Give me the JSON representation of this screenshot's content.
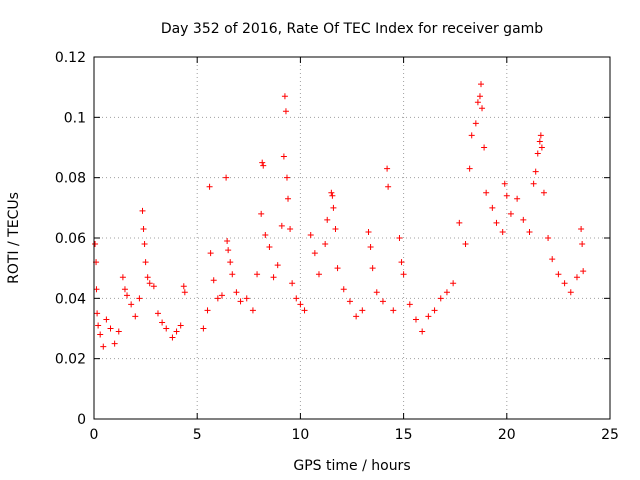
{
  "chart_data": {
    "type": "scatter",
    "title": "Day 352 of 2016, Rate Of TEC Index for receiver gamb",
    "xlabel": "GPS time / hours",
    "ylabel": "ROTI / TECUs",
    "xlim": [
      0,
      25
    ],
    "ylim": [
      0,
      0.12
    ],
    "xticks": [
      0,
      5,
      10,
      15,
      20,
      25
    ],
    "yticks": [
      0,
      0.02,
      0.04,
      0.06,
      0.08,
      0.1,
      0.12
    ],
    "xtick_labels": [
      "0",
      "5",
      "10",
      "15",
      "20",
      "25"
    ],
    "ytick_labels": [
      "0",
      "0.02",
      "0.04",
      "0.06",
      "0.08",
      "0.1",
      "0.12"
    ],
    "grid": true,
    "marker": "+",
    "color": "#ff0000",
    "series": [
      {
        "name": "ROTI",
        "points": [
          [
            0.05,
            0.058
          ],
          [
            0.1,
            0.052
          ],
          [
            0.12,
            0.043
          ],
          [
            0.15,
            0.035
          ],
          [
            0.2,
            0.031
          ],
          [
            0.3,
            0.028
          ],
          [
            0.45,
            0.024
          ],
          [
            0.6,
            0.033
          ],
          [
            0.8,
            0.03
          ],
          [
            1.0,
            0.025
          ],
          [
            1.2,
            0.029
          ],
          [
            1.4,
            0.047
          ],
          [
            1.5,
            0.043
          ],
          [
            1.6,
            0.041
          ],
          [
            1.8,
            0.038
          ],
          [
            2.0,
            0.034
          ],
          [
            2.2,
            0.04
          ],
          [
            2.35,
            0.069
          ],
          [
            2.4,
            0.063
          ],
          [
            2.45,
            0.058
          ],
          [
            2.5,
            0.052
          ],
          [
            2.6,
            0.047
          ],
          [
            2.7,
            0.045
          ],
          [
            2.9,
            0.044
          ],
          [
            3.1,
            0.035
          ],
          [
            3.3,
            0.032
          ],
          [
            3.5,
            0.03
          ],
          [
            3.8,
            0.027
          ],
          [
            4.0,
            0.029
          ],
          [
            4.2,
            0.031
          ],
          [
            4.35,
            0.044
          ],
          [
            4.4,
            0.042
          ],
          [
            5.3,
            0.03
          ],
          [
            5.5,
            0.036
          ],
          [
            5.6,
            0.077
          ],
          [
            5.65,
            0.055
          ],
          [
            5.8,
            0.046
          ],
          [
            6.0,
            0.04
          ],
          [
            6.2,
            0.041
          ],
          [
            6.4,
            0.08
          ],
          [
            6.45,
            0.059
          ],
          [
            6.5,
            0.056
          ],
          [
            6.6,
            0.052
          ],
          [
            6.7,
            0.048
          ],
          [
            6.9,
            0.042
          ],
          [
            7.1,
            0.039
          ],
          [
            7.4,
            0.04
          ],
          [
            7.7,
            0.036
          ],
          [
            7.9,
            0.048
          ],
          [
            8.1,
            0.068
          ],
          [
            8.15,
            0.085
          ],
          [
            8.2,
            0.084
          ],
          [
            8.3,
            0.061
          ],
          [
            8.5,
            0.057
          ],
          [
            8.7,
            0.047
          ],
          [
            8.9,
            0.051
          ],
          [
            9.1,
            0.064
          ],
          [
            9.2,
            0.087
          ],
          [
            9.25,
            0.107
          ],
          [
            9.3,
            0.102
          ],
          [
            9.35,
            0.08
          ],
          [
            9.4,
            0.073
          ],
          [
            9.5,
            0.063
          ],
          [
            9.6,
            0.045
          ],
          [
            9.8,
            0.04
          ],
          [
            10.0,
            0.038
          ],
          [
            10.2,
            0.036
          ],
          [
            10.5,
            0.061
          ],
          [
            10.7,
            0.055
          ],
          [
            10.9,
            0.048
          ],
          [
            11.2,
            0.058
          ],
          [
            11.3,
            0.066
          ],
          [
            11.5,
            0.075
          ],
          [
            11.55,
            0.074
          ],
          [
            11.6,
            0.07
          ],
          [
            11.7,
            0.063
          ],
          [
            11.8,
            0.05
          ],
          [
            12.1,
            0.043
          ],
          [
            12.4,
            0.039
          ],
          [
            12.7,
            0.034
          ],
          [
            13.0,
            0.036
          ],
          [
            13.3,
            0.062
          ],
          [
            13.4,
            0.057
          ],
          [
            13.5,
            0.05
          ],
          [
            13.7,
            0.042
          ],
          [
            14.0,
            0.039
          ],
          [
            14.2,
            0.083
          ],
          [
            14.25,
            0.077
          ],
          [
            14.5,
            0.036
          ],
          [
            14.8,
            0.06
          ],
          [
            14.9,
            0.052
          ],
          [
            15.0,
            0.048
          ],
          [
            15.3,
            0.038
          ],
          [
            15.6,
            0.033
          ],
          [
            15.9,
            0.029
          ],
          [
            16.2,
            0.034
          ],
          [
            16.5,
            0.036
          ],
          [
            16.8,
            0.04
          ],
          [
            17.1,
            0.042
          ],
          [
            17.4,
            0.045
          ],
          [
            17.7,
            0.065
          ],
          [
            18.0,
            0.058
          ],
          [
            18.2,
            0.083
          ],
          [
            18.3,
            0.094
          ],
          [
            18.5,
            0.098
          ],
          [
            18.6,
            0.105
          ],
          [
            18.7,
            0.107
          ],
          [
            18.75,
            0.111
          ],
          [
            18.8,
            0.103
          ],
          [
            18.9,
            0.09
          ],
          [
            19.0,
            0.075
          ],
          [
            19.3,
            0.07
          ],
          [
            19.5,
            0.065
          ],
          [
            19.8,
            0.062
          ],
          [
            19.9,
            0.078
          ],
          [
            20.0,
            0.074
          ],
          [
            20.2,
            0.068
          ],
          [
            20.5,
            0.073
          ],
          [
            20.8,
            0.066
          ],
          [
            21.1,
            0.062
          ],
          [
            21.3,
            0.078
          ],
          [
            21.4,
            0.082
          ],
          [
            21.5,
            0.088
          ],
          [
            21.6,
            0.092
          ],
          [
            21.65,
            0.094
          ],
          [
            21.7,
            0.09
          ],
          [
            21.8,
            0.075
          ],
          [
            22.0,
            0.06
          ],
          [
            22.2,
            0.053
          ],
          [
            22.5,
            0.048
          ],
          [
            22.8,
            0.045
          ],
          [
            23.1,
            0.042
          ],
          [
            23.4,
            0.047
          ],
          [
            23.6,
            0.063
          ],
          [
            23.65,
            0.058
          ],
          [
            23.7,
            0.049
          ]
        ]
      }
    ]
  }
}
